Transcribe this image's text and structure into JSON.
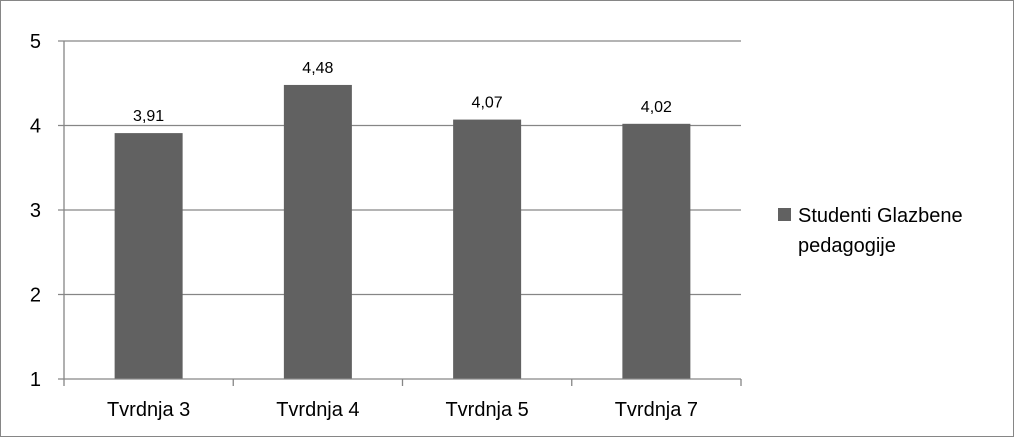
{
  "chart_data": {
    "type": "bar",
    "categories": [
      "Tvrdnja 3",
      "Tvrdnja 4",
      "Tvrdnja 5",
      "Tvrdnja 7"
    ],
    "series": [
      {
        "name": "Studenti Glazbene pedagogije",
        "values": [
          3.91,
          4.48,
          4.07,
          4.02
        ],
        "data_labels": [
          "3,91",
          "4,48",
          "4,07",
          "4,02"
        ],
        "color": "#616161"
      }
    ],
    "ylim": [
      1,
      5
    ],
    "yticks": [
      1,
      2,
      3,
      4,
      5
    ],
    "grid": true,
    "legend": {
      "position": "right",
      "lines": [
        "Studenti Glazbene",
        "pedagogije"
      ]
    }
  },
  "colors": {
    "bar": "#616161",
    "gridline": "#868686",
    "axis": "#868686"
  }
}
